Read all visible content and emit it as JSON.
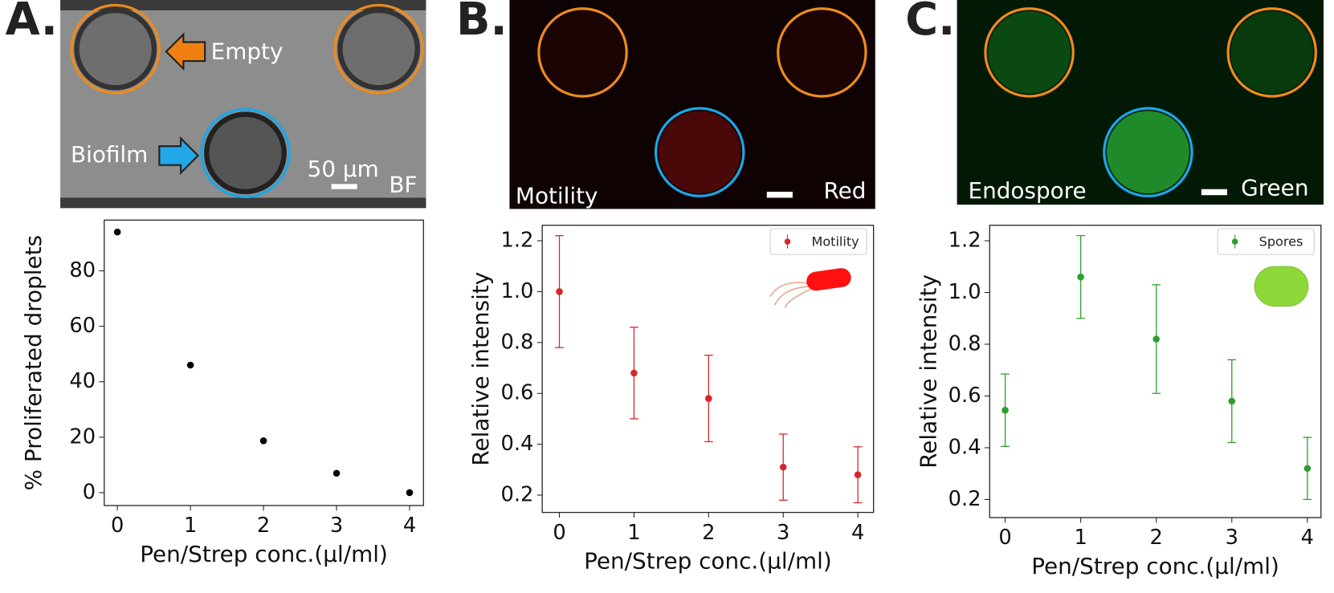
{
  "panels": [
    {
      "label": "A.",
      "texts": [
        "Empty",
        "Biofilm",
        "50 µm",
        "BF"
      ]
    },
    {
      "label": "B.",
      "texts": [
        "Motility",
        "Red"
      ]
    },
    {
      "label": "C.",
      "texts": [
        "Endospore",
        "Green"
      ]
    }
  ],
  "chart_data": [
    {
      "type": "scatter",
      "x_label": "Pen/Strep conc.(µl/ml)",
      "y_label": "% Proliferated droplets",
      "x": [
        0,
        1,
        2,
        3,
        4
      ],
      "values": [
        94,
        46,
        18.7,
        7,
        0
      ],
      "color": "#000000",
      "xlim": [
        -0.18,
        4.19
      ],
      "ylim": [
        -4.65,
        98.3
      ],
      "xticks": [
        0,
        1,
        2,
        3,
        4
      ],
      "yticks": [
        0,
        20,
        40,
        60,
        80
      ]
    },
    {
      "type": "scatter",
      "x_label": "Pen/Strep conc.(µl/ml)",
      "y_label": "Relative intensity",
      "x": [
        0,
        1,
        2,
        3,
        4
      ],
      "series": [
        {
          "name": "Motility",
          "color": "#d62728",
          "values": [
            1.0,
            0.68,
            0.58,
            0.31,
            0.28
          ],
          "errors": [
            0.22,
            0.18,
            0.17,
            0.13,
            0.11
          ]
        }
      ],
      "legend": "upper right",
      "xlim": [
        -0.23,
        4.21
      ],
      "ylim": [
        0.132,
        1.261
      ],
      "xticks": [
        0,
        1,
        2,
        3,
        4
      ],
      "yticks": [
        0.2,
        0.4,
        0.6,
        0.8,
        {
          "value": 1.0,
          "label": "1.0"
        },
        1.2
      ]
    },
    {
      "type": "scatter",
      "x_label": "Pen/Strep conc.(µl/ml)",
      "y_label": "Relative intensity",
      "x": [
        0,
        1,
        2,
        3,
        4
      ],
      "series": [
        {
          "name": "Spores",
          "color": "#2ca02c",
          "values": [
            0.545,
            1.06,
            0.82,
            0.58,
            0.32
          ],
          "errors": [
            0.14,
            0.16,
            0.21,
            0.16,
            0.12
          ]
        }
      ],
      "legend": "upper right",
      "xlim": [
        -0.205,
        4.18
      ],
      "ylim": [
        0.13,
        1.26
      ],
      "xticks": [
        0,
        1,
        2,
        3,
        4
      ],
      "yticks": [
        0.2,
        0.4,
        0.6,
        0.8,
        {
          "value": 1.0,
          "label": "1.0"
        },
        1.2
      ]
    }
  ]
}
